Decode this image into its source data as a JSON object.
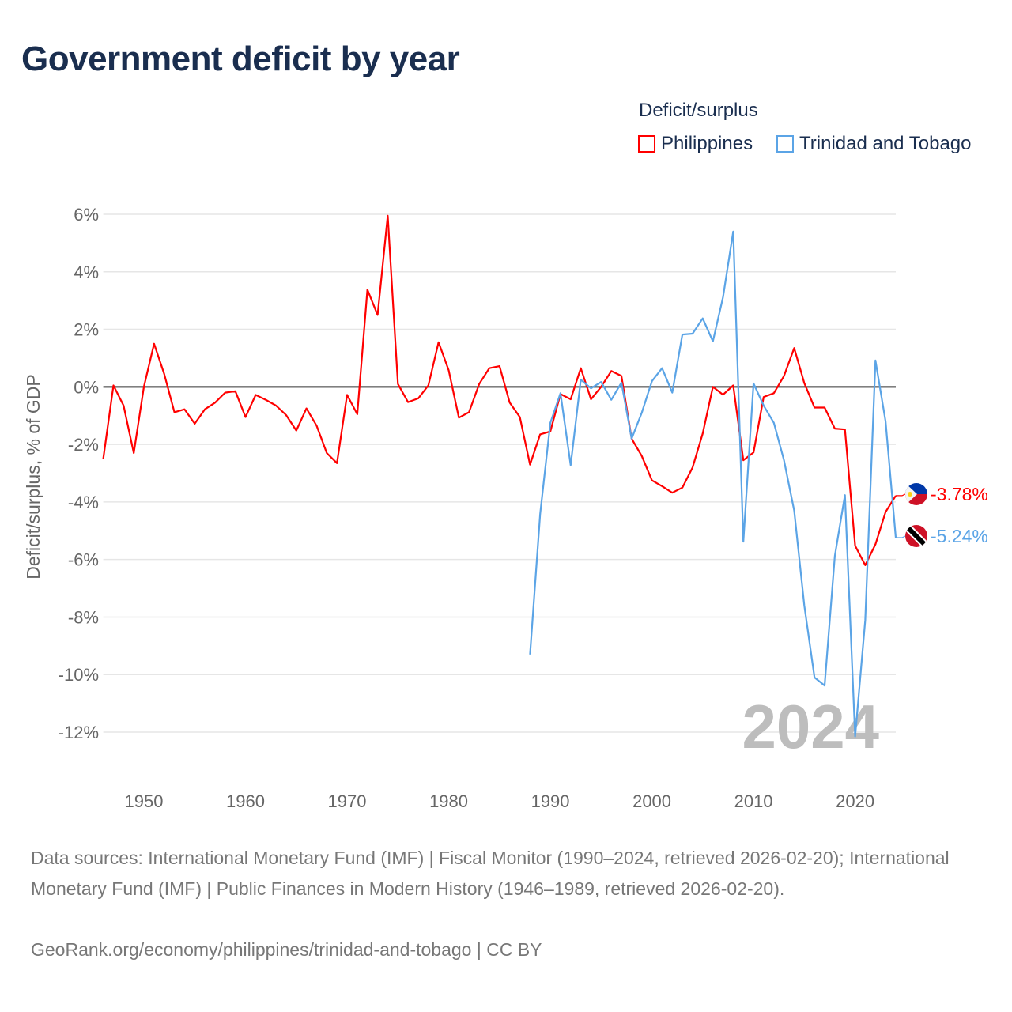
{
  "chart_data": {
    "type": "line",
    "title": "Government deficit by year",
    "xlabel": "",
    "ylabel": "Deficit/surplus, % of GDP",
    "xlim": [
      1946,
      2024
    ],
    "ylim": [
      -12,
      6
    ],
    "x_ticks": [
      1950,
      1960,
      1970,
      1980,
      1990,
      2000,
      2010,
      2020
    ],
    "x_tick_labels": [
      "1950",
      "1960",
      "1970",
      "1980",
      "1990",
      "2000",
      "2010",
      "2020"
    ],
    "y_ticks": [
      6,
      4,
      2,
      0,
      -2,
      -4,
      -6,
      -8,
      -10,
      -12
    ],
    "y_tick_labels": [
      "6%",
      "4%",
      "2%",
      "0%",
      "-2%",
      "-4%",
      "-6%",
      "-8%",
      "-10%",
      "-12%"
    ],
    "grid": true,
    "legend_title": "Deficit/surplus",
    "legend_position": "top-right",
    "year_watermark": "2024",
    "series": [
      {
        "name": "Philippines",
        "color": "#ff0000",
        "end_label": "-3.78%",
        "flag": "philippines-flag",
        "x_start": 1946,
        "values": [
          -2.5,
          0.05,
          -0.65,
          -2.3,
          0,
          1.5,
          0.45,
          -0.88,
          -0.78,
          -1.28,
          -0.78,
          -0.55,
          -0.2,
          -0.15,
          -1.05,
          -0.28,
          -0.45,
          -0.65,
          -0.98,
          -1.52,
          -0.75,
          -1.35,
          -2.3,
          -2.65,
          -0.28,
          -0.95,
          3.38,
          2.5,
          5.95,
          0.1,
          -0.53,
          -0.4,
          0.05,
          1.55,
          0.58,
          -1.07,
          -0.88,
          0.1,
          0.65,
          0.72,
          -0.55,
          -1.05,
          -2.7,
          -1.65,
          -1.55,
          -0.25,
          -0.43,
          0.65,
          -0.43,
          0,
          0.55,
          0.38,
          -1.8,
          -2.4,
          -3.25,
          -3.45,
          -3.68,
          -3.5,
          -2.8,
          -1.62,
          0,
          -0.27,
          0.05,
          -2.55,
          -2.28,
          -0.35,
          -0.22,
          0.38,
          1.35,
          0.13,
          -0.72,
          -0.72,
          -1.45,
          -1.48,
          -5.52,
          -6.2,
          -5.47,
          -4.35,
          -3.78
        ]
      },
      {
        "name": "Trinidad and Tobago",
        "color": "#5ba4e6",
        "end_label": "-5.24%",
        "flag": "trinidad-flag",
        "x_start": 1988,
        "values": [
          -9.3,
          -4.42,
          -1.25,
          -0.22,
          -2.72,
          0.25,
          -0.05,
          0.17,
          -0.45,
          0.15,
          -1.8,
          -0.9,
          0.2,
          0.65,
          -0.2,
          1.82,
          1.85,
          2.38,
          1.58,
          3.12,
          5.4,
          -5.38,
          0.12,
          -0.65,
          -1.25,
          -2.55,
          -4.3,
          -7.6,
          -10.1,
          -10.38,
          -5.88,
          -3.76,
          -12.15,
          -8.1,
          0.92,
          -1.2,
          -5.24
        ]
      }
    ]
  },
  "footer": {
    "sources": "Data sources: International Monetary Fund (IMF) | Fiscal Monitor (1990–2024, retrieved 2026-02-20); International Monetary Fund (IMF) | Public Finances in Modern History (1946–1989, retrieved 2026-02-20).",
    "credit": "GeoRank.org/economy/philippines/trinidad-and-tobago | CC BY"
  }
}
